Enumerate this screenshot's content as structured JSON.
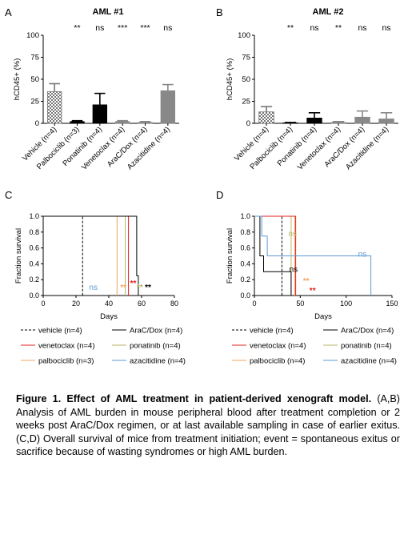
{
  "colors": {
    "vehicle": "#000000",
    "palbociclib": "#f4a460",
    "ponatinib": "#b8b66a",
    "venetoclax": "#e02020",
    "aracdox": "#000000",
    "azacitidine": "#5b9bd5",
    "sig_ns": "#5b9bd5",
    "sig_palbo": "#f4a460",
    "sig_pona": "#b8b66a",
    "sig_vene": "#e02020",
    "bar_vehicle": "#777777",
    "bar_black": "#000000",
    "bar_grey": "#888888"
  },
  "chart_data": [
    {
      "type": "bar",
      "panel": "A",
      "title": "AML #1",
      "ylabel": "hCD45+ (%)",
      "ylim": [
        0,
        100
      ],
      "yticks": [
        "0",
        "25",
        "50",
        "75",
        "100"
      ],
      "categories": [
        "Vehicle (n=4)",
        "Palbociclib (n=3)",
        "Ponatinib (n=4)",
        "Venetoclax (n=4)",
        "AraC/Dox (n=4)",
        "Azacitidine (n=4)"
      ],
      "values": [
        36,
        2,
        21,
        2,
        1,
        37
      ],
      "errors": [
        9,
        1,
        13,
        1,
        1,
        7
      ],
      "significance": [
        "",
        "**",
        "ns",
        "***",
        "***",
        "ns"
      ]
    },
    {
      "type": "bar",
      "panel": "B",
      "title": "AML #2",
      "ylabel": "hCD45+ (%)",
      "ylim": [
        0,
        100
      ],
      "yticks": [
        "0",
        "25",
        "50",
        "75",
        "100"
      ],
      "categories": [
        "Vehicle (n=4)",
        "Palbociclib (n=4)",
        "Ponatinib (n=4)",
        "Venetoclax (n=4)",
        "AraC/Dox (n=4)",
        "Azacitidine (n=4)"
      ],
      "values": [
        13,
        0.5,
        6,
        1,
        7,
        5
      ],
      "errors": [
        6,
        0.5,
        6,
        1,
        7,
        7
      ],
      "significance": [
        "",
        "**",
        "ns",
        "**",
        "ns",
        "ns"
      ]
    },
    {
      "type": "line",
      "panel": "C",
      "xlabel": "Days",
      "ylabel": "Fraction survival",
      "xlim": [
        0,
        80
      ],
      "ylim": [
        0,
        1
      ],
      "xticks": [
        "0",
        "20",
        "40",
        "60",
        "80"
      ],
      "yticks": [
        "0.0",
        "0.2",
        "0.4",
        "0.6",
        "0.8",
        "1.0"
      ],
      "series": [
        {
          "name": "vehicle (n=4)",
          "steps": [
            [
              0,
              1
            ],
            [
              24,
              1
            ],
            [
              24,
              0
            ]
          ]
        },
        {
          "name": "palbociclib (n=3)",
          "steps": [
            [
              0,
              1
            ],
            [
              45,
              1
            ],
            [
              45,
              0
            ]
          ]
        },
        {
          "name": "ponatinib (n=4)",
          "steps": [
            [
              0,
              1
            ],
            [
              50,
              1
            ],
            [
              50,
              0
            ]
          ]
        },
        {
          "name": "venetoclax (n=4)",
          "steps": [
            [
              0,
              1
            ],
            [
              52,
              1
            ],
            [
              52,
              0
            ]
          ]
        },
        {
          "name": "AraC/Dox (n=4)",
          "steps": [
            [
              0,
              1
            ],
            [
              57,
              1
            ],
            [
              57,
              0.25
            ],
            [
              58,
              0.25
            ],
            [
              58,
              0
            ]
          ]
        },
        {
          "name": "azacitidine (n=4)",
          "steps": []
        }
      ],
      "annotations": [
        {
          "text": "ns",
          "x": 28,
          "y": 0.1
        },
        {
          "text": "**",
          "x": 47,
          "y": 0.1
        },
        {
          "text": "**",
          "x": 53,
          "y": 0.15
        },
        {
          "text": "**",
          "x": 57,
          "y": 0.1
        },
        {
          "text": "**",
          "x": 62,
          "y": 0.1
        }
      ]
    },
    {
      "type": "line",
      "panel": "D",
      "xlabel": "Days",
      "ylabel": "Fraction survival",
      "xlim": [
        0,
        150
      ],
      "ylim": [
        0,
        1
      ],
      "xticks": [
        "0",
        "50",
        "100",
        "150"
      ],
      "yticks": [
        "0.0",
        "0.2",
        "0.4",
        "0.6",
        "0.8",
        "1.0"
      ],
      "series": [
        {
          "name": "vehicle (n=4)",
          "steps": [
            [
              0,
              1
            ],
            [
              30,
              1
            ],
            [
              30,
              0
            ]
          ]
        },
        {
          "name": "palbociclib (n=4)",
          "steps": [
            [
              0,
              1
            ],
            [
              44,
              1
            ],
            [
              44,
              0
            ]
          ]
        },
        {
          "name": "ponatinib (n=4)",
          "steps": [
            [
              0,
              1
            ],
            [
              40,
              1
            ],
            [
              40,
              0
            ]
          ]
        },
        {
          "name": "venetoclax (n=4)",
          "steps": [
            [
              0,
              1
            ],
            [
              45,
              1
            ],
            [
              45,
              0
            ]
          ]
        },
        {
          "name": "AraC/Dox (n=4)",
          "steps": [
            [
              0,
              1
            ],
            [
              6,
              1
            ],
            [
              6,
              0.5
            ],
            [
              10,
              0.5
            ],
            [
              10,
              0.3
            ],
            [
              40,
              0.3
            ],
            [
              40,
              0
            ]
          ]
        },
        {
          "name": "azacitidine (n=4)",
          "steps": [
            [
              0,
              1
            ],
            [
              8,
              1
            ],
            [
              8,
              0.75
            ],
            [
              14,
              0.75
            ],
            [
              14,
              0.5
            ],
            [
              127,
              0.5
            ],
            [
              127,
              0
            ]
          ]
        }
      ],
      "annotations": [
        {
          "text": "ns",
          "x": 37,
          "y": 0.78
        },
        {
          "text": "ns",
          "x": 38,
          "y": 0.33
        },
        {
          "text": "ns",
          "x": 113,
          "y": 0.52
        },
        {
          "text": "**",
          "x": 53,
          "y": 0.18
        },
        {
          "text": "**",
          "x": 60,
          "y": 0.06
        }
      ]
    }
  ],
  "panel_letters": [
    "A",
    "B",
    "C",
    "D"
  ],
  "caption": {
    "bold": "Figure 1. Effect of AML treatment in patient-derived xenograft model.",
    "text": " (A,B) Analysis of AML burden in mouse peripheral blood after treatment completion or 2 weeks post AraC/Dox regimen, or at last available sampling in case of earlier exitus. (C,D) Overall survival of mice from treatment initiation; event = spontaneous exitus or sacrifice because of wasting syndromes or high AML burden."
  }
}
